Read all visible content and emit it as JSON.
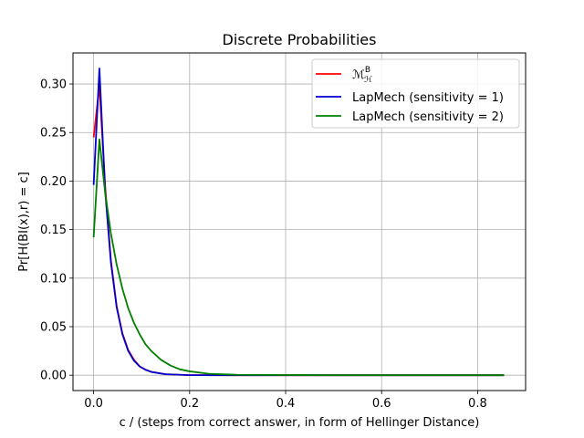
{
  "chart_data": {
    "type": "line",
    "title": "Discrete Probabilities",
    "xlabel": "c / (steps from correct answer, in form of Hellinger Distance)",
    "ylabel": "Pr[H(BI(x),r) = c]",
    "xlim": [
      -0.043,
      0.9
    ],
    "ylim": [
      -0.0158,
      0.332
    ],
    "xticks": [
      0.0,
      0.2,
      0.4,
      0.6,
      0.8
    ],
    "xtick_labels": [
      "0.0",
      "0.2",
      "0.4",
      "0.6",
      "0.8"
    ],
    "yticks": [
      0.0,
      0.05,
      0.1,
      0.15,
      0.2,
      0.25,
      0.3
    ],
    "ytick_labels": [
      "0.00",
      "0.05",
      "0.10",
      "0.15",
      "0.20",
      "0.25",
      "0.30"
    ],
    "grid": true,
    "legend_position": "top-right",
    "legend_symbol_math": {
      "base": "ℳ",
      "sup": "B",
      "sub": "ℋ"
    },
    "series": [
      {
        "name": "ℳ_ℋ^B",
        "color": "#ff0000",
        "x": [
          0.0,
          0.012,
          0.024,
          0.036,
          0.048,
          0.06,
          0.072,
          0.084,
          0.096,
          0.108,
          0.12,
          0.15,
          0.2,
          0.3,
          0.5,
          0.7,
          0.855
        ],
        "y": [
          0.245,
          0.298,
          0.195,
          0.118,
          0.071,
          0.043,
          0.026,
          0.016,
          0.009,
          0.0058,
          0.0035,
          0.001,
          0.0001,
          0.0,
          0.0,
          0.0,
          0.0
        ]
      },
      {
        "name": "LapMech (sensitivity = 1)",
        "color": "#0000cc",
        "x": [
          0.0,
          0.012,
          0.024,
          0.036,
          0.048,
          0.06,
          0.072,
          0.084,
          0.096,
          0.108,
          0.12,
          0.15,
          0.2,
          0.3,
          0.5,
          0.7,
          0.855
        ],
        "y": [
          0.196,
          0.316,
          0.19,
          0.116,
          0.07,
          0.042,
          0.025,
          0.015,
          0.009,
          0.0056,
          0.0034,
          0.001,
          0.0001,
          0.0,
          0.0,
          0.0,
          0.0
        ]
      },
      {
        "name": "LapMech (sensitivity = 2)",
        "color": "#008000",
        "x": [
          0.0,
          0.012,
          0.024,
          0.036,
          0.048,
          0.06,
          0.072,
          0.084,
          0.096,
          0.108,
          0.12,
          0.14,
          0.16,
          0.18,
          0.2,
          0.24,
          0.3,
          0.5,
          0.7,
          0.855
        ],
        "y": [
          0.142,
          0.243,
          0.188,
          0.146,
          0.114,
          0.089,
          0.069,
          0.054,
          0.042,
          0.032,
          0.025,
          0.016,
          0.01,
          0.006,
          0.004,
          0.0015,
          0.0004,
          0.0,
          0.0,
          0.0
        ]
      }
    ]
  }
}
